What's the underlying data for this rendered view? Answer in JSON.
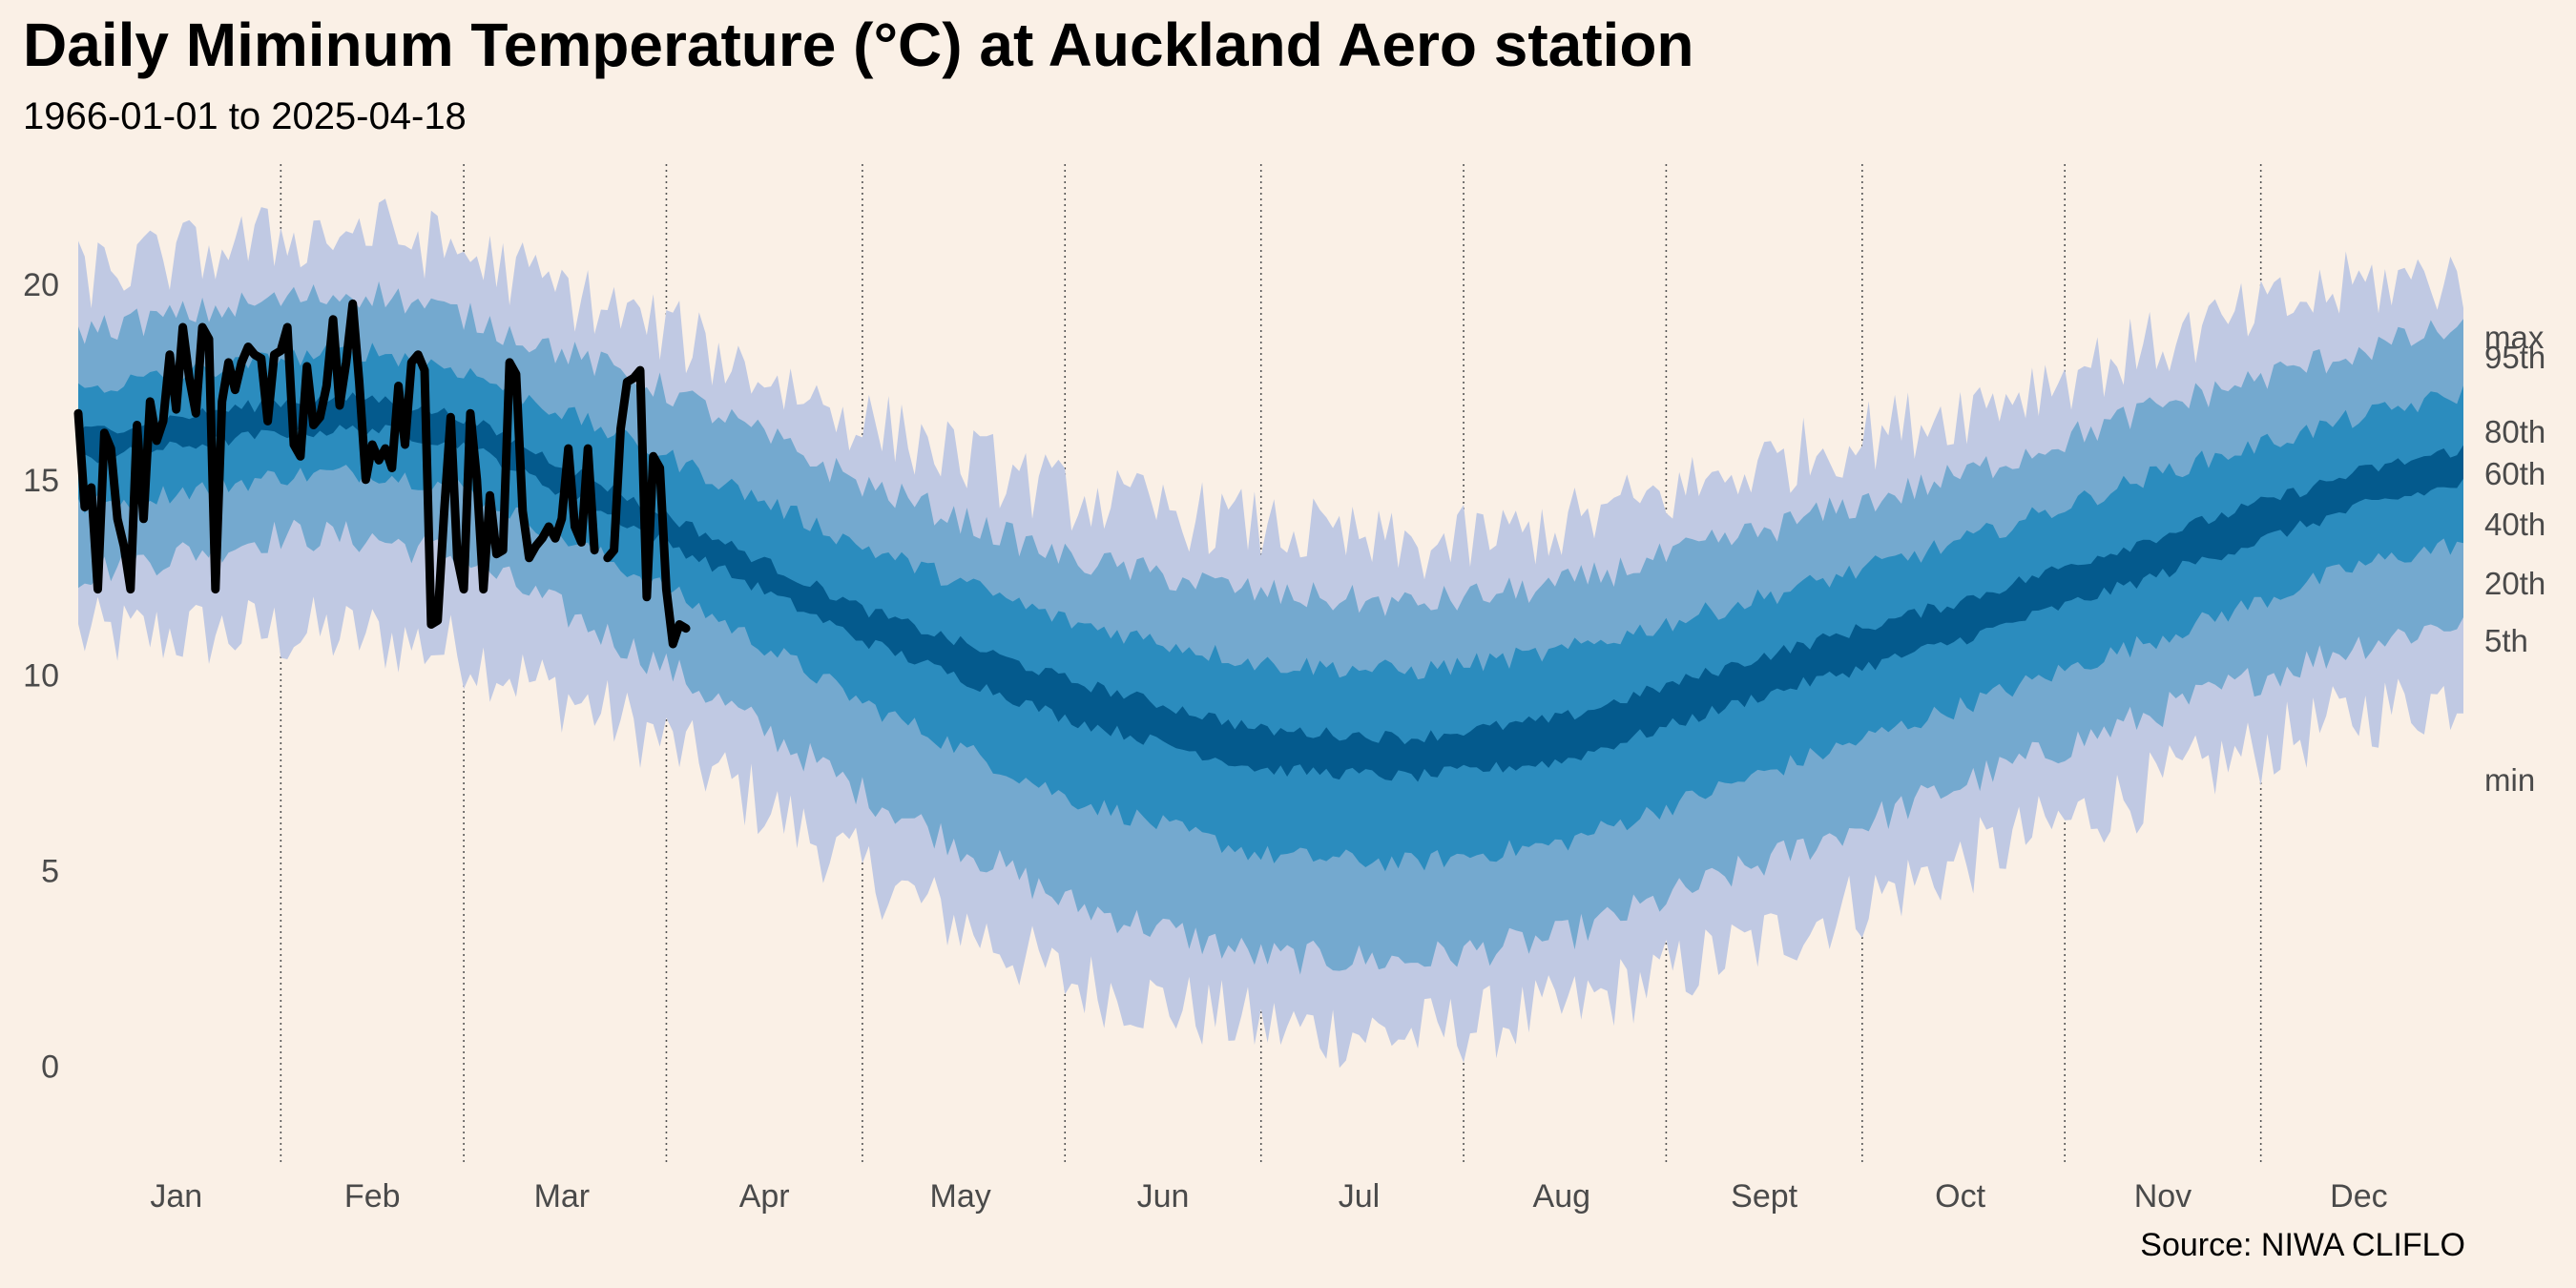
{
  "title": "Daily Miminum Temperature (°C) at Auckland Aero station",
  "subtitle": "1966-01-01 to 2025-04-18",
  "source": "Source: NIWA CLIFLO",
  "chart_data": {
    "type": "area",
    "x_unit": "day-of-year",
    "ylim": [
      -2.5,
      23
    ],
    "y_ticks": [
      0,
      5,
      10,
      15,
      20
    ],
    "grid": "vertical dotted lines at month boundaries",
    "months": [
      "Jan",
      "Feb",
      "Mar",
      "Apr",
      "May",
      "Jun",
      "Jul",
      "Aug",
      "Sept",
      "Oct",
      "Nov",
      "Dec"
    ],
    "month_boundaries": [
      32,
      60,
      91,
      121,
      152,
      182,
      213,
      244,
      274,
      305,
      335
    ],
    "month_midpoints": [
      16,
      46,
      75,
      106,
      136,
      167,
      197,
      228,
      259,
      289,
      320,
      350
    ],
    "band_labels": [
      "max",
      "95th",
      "80th",
      "60th",
      "40th",
      "20th",
      "5th",
      "min"
    ],
    "band_colors": {
      "min_max": "#c0c9e3",
      "p5_p95": "#74a9cf",
      "p20_p80": "#2b8cbe",
      "p40_p60": "#045a8d",
      "current_year": "#000000"
    },
    "climatology_anchors": [
      {
        "doy": 1,
        "min": 11.0,
        "p5": 12.6,
        "p20": 14.3,
        "p40": 15.5,
        "p60": 16.2,
        "p80": 17.3,
        "p95": 18.8,
        "max": 20.2
      },
      {
        "doy": 32,
        "min": 11.1,
        "p5": 13.6,
        "p20": 15.1,
        "p40": 16.2,
        "p60": 17.0,
        "p80": 18.1,
        "p95": 19.6,
        "max": 21.2
      },
      {
        "doy": 46,
        "min": 11.0,
        "p5": 13.5,
        "p20": 15.2,
        "p40": 16.3,
        "p60": 17.1,
        "p80": 18.3,
        "p95": 19.8,
        "max": 21.4
      },
      {
        "doy": 60,
        "min": 10.6,
        "p5": 13.0,
        "p20": 14.8,
        "p40": 15.9,
        "p60": 16.6,
        "p80": 17.8,
        "p95": 19.2,
        "max": 20.8
      },
      {
        "doy": 91,
        "min": 8.3,
        "p5": 10.2,
        "p20": 12.2,
        "p40": 13.4,
        "p60": 14.1,
        "p80": 15.6,
        "p95": 17.3,
        "max": 18.8
      },
      {
        "doy": 121,
        "min": 5.0,
        "p5": 7.0,
        "p20": 9.3,
        "p40": 10.9,
        "p60": 11.7,
        "p80": 13.3,
        "p95": 14.9,
        "max": 16.5
      },
      {
        "doy": 152,
        "min": 2.2,
        "p5": 4.2,
        "p20": 6.9,
        "p40": 8.9,
        "p60": 9.9,
        "p80": 11.4,
        "p95": 13.0,
        "max": 14.6
      },
      {
        "doy": 182,
        "min": 1.0,
        "p5": 2.8,
        "p20": 5.4,
        "p40": 7.6,
        "p60": 8.6,
        "p80": 10.3,
        "p95": 12.1,
        "max": 13.8
      },
      {
        "doy": 205,
        "min": 0.8,
        "p5": 2.7,
        "p20": 5.2,
        "p40": 7.4,
        "p60": 8.4,
        "p80": 10.1,
        "p95": 11.8,
        "max": 13.2
      },
      {
        "doy": 228,
        "min": 1.4,
        "p5": 3.3,
        "p20": 5.7,
        "p40": 7.8,
        "p60": 8.9,
        "p80": 10.6,
        "p95": 12.3,
        "max": 13.8
      },
      {
        "doy": 259,
        "min": 3.2,
        "p5": 5.2,
        "p20": 7.5,
        "p40": 9.5,
        "p60": 10.5,
        "p80": 12.0,
        "p95": 13.7,
        "max": 15.4
      },
      {
        "doy": 289,
        "min": 5.2,
        "p5": 7.2,
        "p20": 9.2,
        "p40": 10.9,
        "p60": 11.9,
        "p80": 13.4,
        "p95": 15.1,
        "max": 16.8
      },
      {
        "doy": 320,
        "min": 7.2,
        "p5": 9.1,
        "p20": 11.0,
        "p40": 12.6,
        "p60": 13.6,
        "p80": 15.2,
        "p95": 16.9,
        "max": 18.5
      },
      {
        "doy": 350,
        "min": 9.0,
        "p5": 10.8,
        "p20": 12.8,
        "p40": 14.3,
        "p60": 15.2,
        "p80": 16.6,
        "p95": 18.3,
        "max": 20.0
      },
      {
        "doy": 366,
        "min": 9.5,
        "p5": 11.4,
        "p20": 13.4,
        "p40": 14.9,
        "p60": 15.8,
        "p80": 17.2,
        "p95": 18.9,
        "max": 20.2
      }
    ],
    "current_year": {
      "start_doy": 1,
      "values": [
        16.7,
        14.3,
        14.8,
        12.2,
        16.2,
        15.8,
        14.0,
        13.3,
        12.2,
        16.4,
        14.0,
        17.0,
        16.0,
        16.5,
        18.2,
        16.8,
        18.9,
        17.6,
        16.7,
        18.9,
        18.6,
        12.2,
        17.0,
        18.0,
        17.3,
        18.0,
        18.4,
        18.2,
        18.1,
        16.5,
        18.2,
        18.3,
        18.9,
        15.9,
        15.6,
        17.9,
        16.4,
        16.6,
        17.4,
        19.1,
        16.9,
        18.0,
        19.5,
        17.5,
        15.0,
        15.9,
        15.5,
        15.8,
        15.3,
        17.4,
        15.9,
        18.0,
        18.2,
        17.8,
        11.3,
        11.4,
        14.2,
        16.6,
        13.0,
        12.2,
        16.7,
        15.0,
        12.2,
        14.6,
        13.1,
        13.2,
        18.0,
        17.7,
        14.2,
        13.0,
        13.3,
        13.5,
        13.8,
        13.5,
        14.0,
        15.8,
        13.8,
        13.4,
        15.8,
        13.2,
        null,
        13.0,
        13.2,
        16.3,
        17.5,
        17.6,
        17.8,
        12.0,
        15.6,
        15.3,
        12.2,
        10.8,
        11.3,
        11.2
      ]
    }
  }
}
